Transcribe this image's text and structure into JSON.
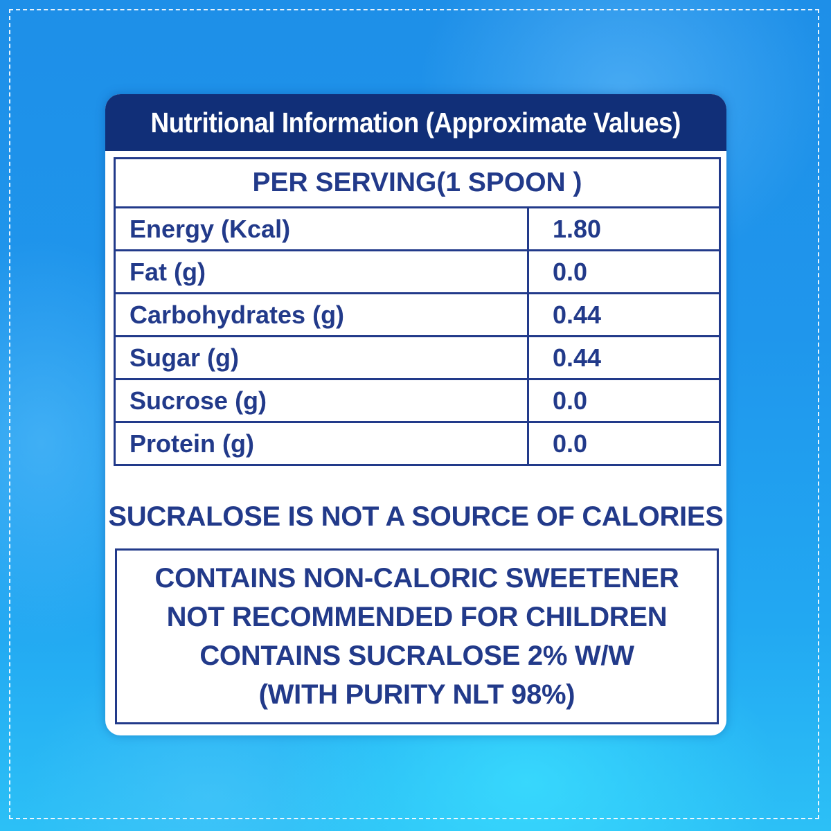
{
  "title": "Nutritional Information (Approximate Values)",
  "serving_header": "PER SERVING(1 SPOON )",
  "rows": [
    {
      "label": "Energy (Kcal)",
      "value": "1.80"
    },
    {
      "label": "Fat (g)",
      "value": "0.0"
    },
    {
      "label": "Carbohydrates (g)",
      "value": "0.44"
    },
    {
      "label": "Sugar (g)",
      "value": "0.44"
    },
    {
      "label": "Sucrose (g)",
      "value": "0.0"
    },
    {
      "label": "Protein (g)",
      "value": "0.0"
    }
  ],
  "note": "SUCRALOSE IS NOT A SOURCE OF CALORIES",
  "warnings": [
    "CONTAINS NON-CALORIC SWEETENER",
    "NOT RECOMMENDED FOR CHILDREN",
    "CONTAINS SUCRALOSE 2% W/W",
    "(WITH PURITY NLT 98%)"
  ],
  "colors": {
    "header_bg": "#112f78",
    "text": "#223a8a",
    "background": "#1f96ec"
  }
}
